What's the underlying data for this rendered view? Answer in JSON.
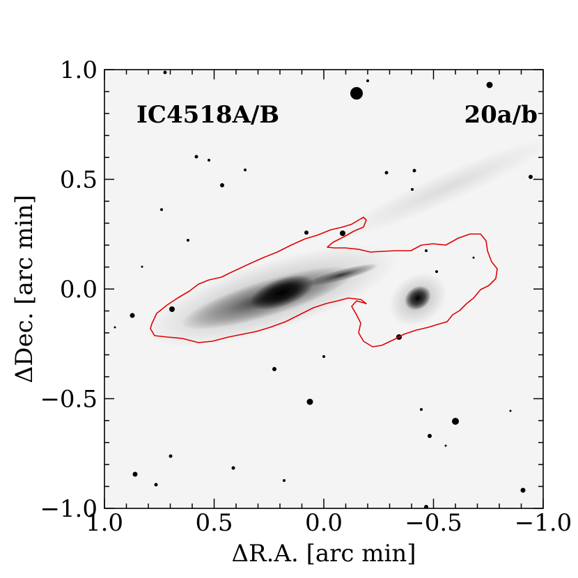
{
  "image": {
    "object_label": "IC4518A/B",
    "panel_id": "20a/b",
    "contour_color": "#e00000",
    "xlabel": "ΔR.A. [arc min]",
    "ylabel": "ΔDec. [arc min]",
    "x_ticks": [
      "1.0",
      "0.5",
      "0.0",
      "−0.5",
      "−1.0"
    ],
    "y_ticks": [
      "1.0",
      "0.5",
      "0.0",
      "−0.5",
      "−1.0"
    ],
    "xlim": [
      1.0,
      -1.0
    ],
    "ylim": [
      -1.0,
      1.0
    ]
  }
}
